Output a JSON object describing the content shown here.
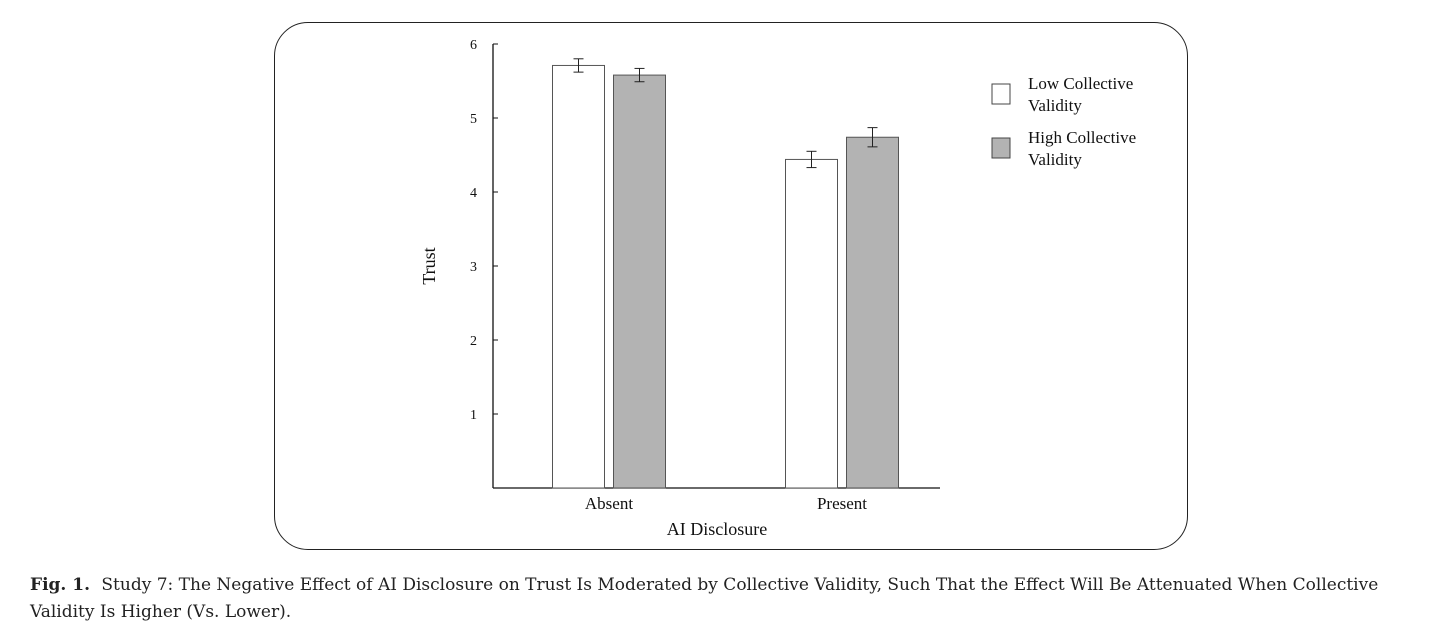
{
  "chart_data": {
    "type": "bar",
    "xlabel": "AI Disclosure",
    "ylabel": "Trust",
    "ylim": [
      0,
      6
    ],
    "yticks": [
      1,
      2,
      3,
      4,
      5,
      6
    ],
    "categories": [
      "Absent",
      "Present"
    ],
    "series": [
      {
        "name": "Low Collective Validity",
        "name_lines": [
          "Low Collective",
          "Validity"
        ],
        "color": "#ffffff",
        "values": [
          5.71,
          4.44
        ],
        "error": [
          0.09,
          0.11
        ]
      },
      {
        "name": "High Collective Validity",
        "name_lines": [
          "High Collective",
          "Validity"
        ],
        "color": "#b3b3b3",
        "values": [
          5.58,
          4.74
        ],
        "error": [
          0.09,
          0.13
        ]
      }
    ],
    "legend_position": "top-right",
    "grid": false
  },
  "caption": {
    "label": "Fig. 1.",
    "text": "Study 7: The Negative Effect of AI Disclosure on Trust Is Moderated by Collective Validity, Such That the Effect Will Be Attenuated When Collective Validity Is Higher (Vs. Lower)."
  }
}
